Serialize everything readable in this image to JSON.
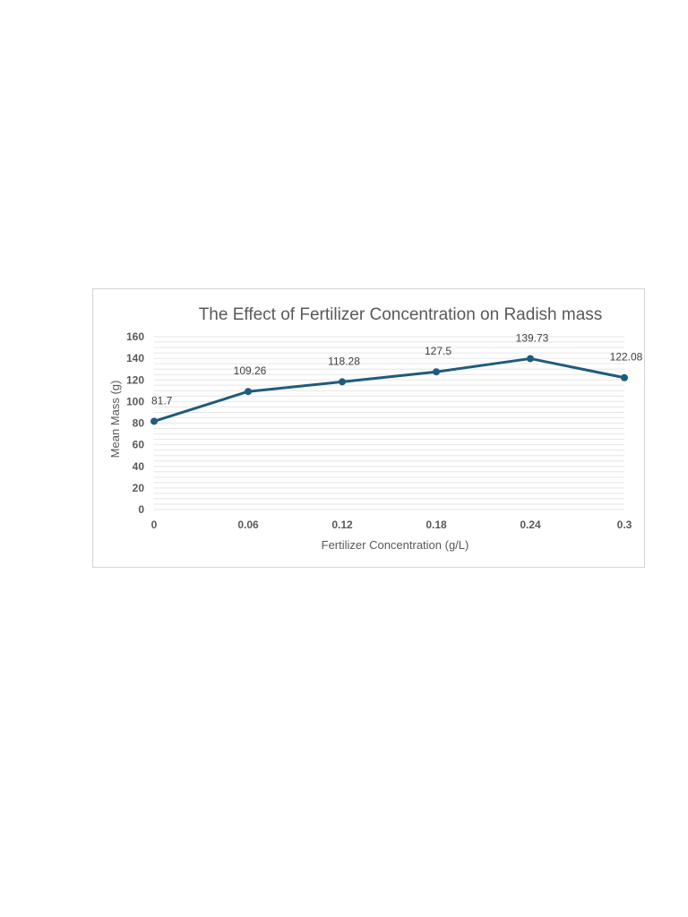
{
  "chart_data": {
    "type": "line",
    "title": "The Effect of Fertilizer Concentration on Radish mass",
    "xlabel": "Fertilizer Concentration (g/L)",
    "ylabel": "Mean Mass (g)",
    "categories": [
      "0",
      "0.06",
      "0.12",
      "0.18",
      "0.24",
      "0.3"
    ],
    "x": [
      0,
      0.06,
      0.12,
      0.18,
      0.24,
      0.3
    ],
    "values": [
      81.7,
      109.26,
      118.28,
      127.5,
      139.73,
      122.08
    ],
    "data_labels": [
      "81.7",
      "109.26",
      "118.28",
      "127.5",
      "139.73",
      "122.08"
    ],
    "yticks": [
      "0",
      "20",
      "40",
      "60",
      "80",
      "100",
      "120",
      "140",
      "160"
    ],
    "ylim": [
      0,
      160
    ],
    "xlim": [
      0,
      0.3
    ],
    "grid": true,
    "legend": "none",
    "colors": {
      "series": "#1f5c7d",
      "grid": "#e6e6e6",
      "text": "#595959",
      "frame": "#d4d4d4"
    }
  }
}
